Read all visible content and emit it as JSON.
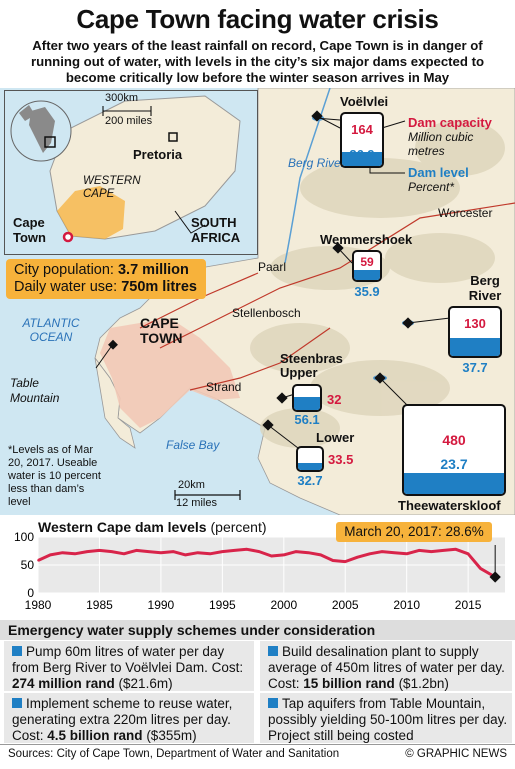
{
  "title": "Cape Town facing water crisis",
  "subtitle": "After two years of the least rainfall on record, Cape Town is in danger of running out of water, with levels in the city’s six major dams expected to become critically low before the winter season arrives in May",
  "inset": {
    "scale_km": "300km",
    "scale_miles": "200 miles",
    "pretoria": "Pretoria",
    "western_cape": "WESTERN CAPE",
    "cape_town": "Cape Town",
    "south_africa": "SOUTH AFRICA"
  },
  "stats": {
    "population_label": "City population:",
    "population_value": "3.7 million",
    "water_label": "Daily water use:",
    "water_value": "750m litres"
  },
  "map_labels": {
    "berg_river": "Berg River",
    "worcester": "Worcester",
    "paarl": "Paarl",
    "stellenbosch": "Stellenbosch",
    "atlantic": "ATLANTIC OCEAN",
    "cape_town": "CAPE TOWN",
    "table_mountain": "Table Mountain",
    "strand": "Strand",
    "false_bay": "False Bay",
    "scale_km": "20km",
    "scale_miles": "12 miles",
    "note": "*Levels as of Mar 20, 2017. Useable water is 10 percent less than dam’s level"
  },
  "legend": {
    "dam_capacity": "Dam capacity",
    "capacity_unit": "Million cubic metres",
    "dam_level": "Dam level",
    "level_unit": "Percent*"
  },
  "dams": [
    {
      "name": "Voëlvlei",
      "capacity": "164",
      "level": "26.9",
      "level_pct": 26.9
    },
    {
      "name": "Wemmershoek",
      "capacity": "59",
      "level": "35.9",
      "level_pct": 35.9
    },
    {
      "name": "Berg River",
      "capacity": "130",
      "level": "37.7",
      "level_pct": 37.7
    },
    {
      "name": "Steenbras Upper",
      "capacity": "32",
      "level": "56.1",
      "level_pct": 56.1
    },
    {
      "name": "Lower",
      "capacity": "33.5",
      "level": "32.7",
      "level_pct": 32.7
    },
    {
      "name": "Theewaterskloof",
      "capacity": "480",
      "level": "23.7",
      "level_pct": 23.7
    }
  ],
  "chart_data": {
    "type": "line",
    "title": "Western Cape dam levels",
    "ylabel": "(percent)",
    "ylim": [
      0,
      100
    ],
    "yticks": [
      "100",
      "50",
      "0"
    ],
    "xticks": [
      "1980",
      "1985",
      "1990",
      "1995",
      "2000",
      "2005",
      "2010",
      "2015"
    ],
    "x": [
      1980,
      1981,
      1982,
      1983,
      1984,
      1985,
      1986,
      1987,
      1988,
      1989,
      1990,
      1991,
      1992,
      1993,
      1994,
      1995,
      1996,
      1997,
      1998,
      1999,
      2000,
      2001,
      2002,
      2003,
      2004,
      2005,
      2006,
      2007,
      2008,
      2009,
      2010,
      2011,
      2012,
      2013,
      2014,
      2015,
      2016,
      2017.2
    ],
    "values": [
      58,
      68,
      72,
      70,
      74,
      76,
      74,
      70,
      76,
      74,
      72,
      74,
      68,
      72,
      70,
      74,
      76,
      78,
      74,
      66,
      68,
      74,
      72,
      68,
      58,
      56,
      64,
      70,
      74,
      72,
      70,
      76,
      74,
      76,
      78,
      70,
      44,
      28.6
    ],
    "annotation": "March 20, 2017: 28.6%",
    "line_color": "#d8244a"
  },
  "schemes_header": "Emergency water supply schemes under consideration",
  "schemes": [
    {
      "text": "Pump 60m litres of water per day from Berg River to Voëlvlei Dam.",
      "cost_label": "Cost:",
      "cost_value": "274 million rand",
      "cost_usd": "($21.6m)"
    },
    {
      "text": "Build desalination plant to supply average of 450m litres of water per day.",
      "cost_label": "Cost:",
      "cost_value": "15 billion rand",
      "cost_usd": "($1.2bn)"
    },
    {
      "text": "Implement scheme to reuse water, generating extra 220m litres per day.",
      "cost_label": "Cost:",
      "cost_value": "4.5 billion rand",
      "cost_usd": "($355m)"
    },
    {
      "text": "Tap aquifers from Table Mountain, possibly yielding 50-100m litres per day. Project still being costed",
      "cost_label": "",
      "cost_value": "",
      "cost_usd": ""
    }
  ],
  "sources": "Sources: City of Cape Town, Department of Water and Sanitation",
  "credit": "© GRAPHIC NEWS",
  "colors": {
    "accent": "#f7b23b",
    "water": "#1f7fc4",
    "capacity": "#d4193f",
    "sea": "#cfe7f2",
    "land": "#f3ecd9"
  }
}
